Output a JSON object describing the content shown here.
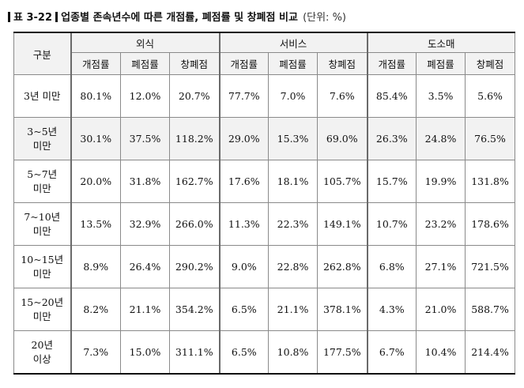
{
  "caption": {
    "number": "표 3-22",
    "title": "업종별 존속년수에 따른 개점률, 폐점률 및 창폐점 비교",
    "unit": "(단위: %)"
  },
  "header": {
    "row_label": "구분",
    "groups": [
      "외식",
      "서비스",
      "도소매"
    ],
    "metrics": [
      "개점률",
      "폐점률",
      "창폐점"
    ]
  },
  "rows": [
    {
      "label_line1": "3년 미만",
      "label_line2": "",
      "cells": [
        "80.1%",
        "12.0%",
        "20.7%",
        "77.7%",
        "7.0%",
        "7.6%",
        "85.4%",
        "3.5%",
        "5.6%"
      ]
    },
    {
      "label_line1": "3~5년",
      "label_line2": "미만",
      "cells": [
        "30.1%",
        "37.5%",
        "118.2%",
        "29.0%",
        "15.3%",
        "69.0%",
        "26.3%",
        "24.8%",
        "76.5%"
      ]
    },
    {
      "label_line1": "5~7년",
      "label_line2": "미만",
      "cells": [
        "20.0%",
        "31.8%",
        "162.7%",
        "17.6%",
        "18.1%",
        "105.7%",
        "15.7%",
        "19.9%",
        "131.8%"
      ]
    },
    {
      "label_line1": "7~10년",
      "label_line2": "미만",
      "cells": [
        "13.5%",
        "32.9%",
        "266.0%",
        "11.3%",
        "22.3%",
        "149.1%",
        "10.7%",
        "23.2%",
        "178.6%"
      ]
    },
    {
      "label_line1": "10~15년",
      "label_line2": "미만",
      "cells": [
        "8.9%",
        "26.4%",
        "290.2%",
        "9.0%",
        "22.8%",
        "262.8%",
        "6.8%",
        "27.1%",
        "721.5%"
      ]
    },
    {
      "label_line1": "15~20년",
      "label_line2": "미만",
      "cells": [
        "8.2%",
        "21.1%",
        "354.2%",
        "6.5%",
        "21.1%",
        "378.1%",
        "4.3%",
        "21.0%",
        "588.7%"
      ]
    },
    {
      "label_line1": "20년",
      "label_line2": "이상",
      "cells": [
        "7.3%",
        "15.0%",
        "311.1%",
        "6.5%",
        "10.8%",
        "177.5%",
        "6.7%",
        "10.4%",
        "214.4%"
      ]
    }
  ],
  "colors": {
    "header_bg": "#f2f2f2",
    "shaded_row_bg": "#f2f2f2",
    "border": "#8a8a8a"
  }
}
